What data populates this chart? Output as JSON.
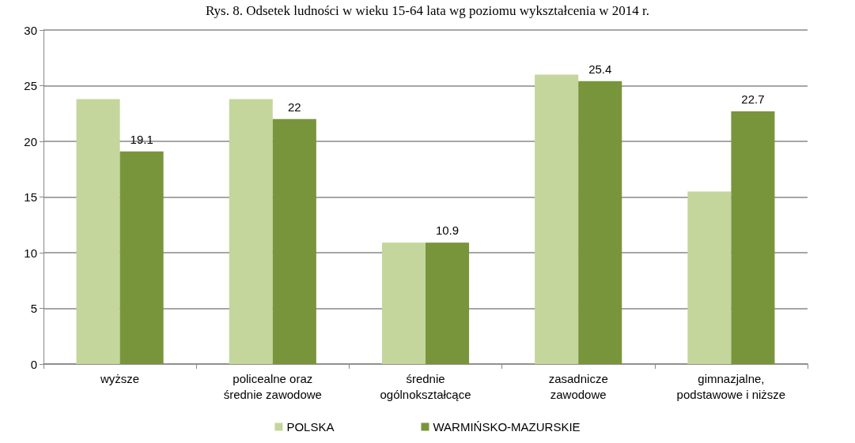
{
  "chart_data": {
    "type": "bar",
    "title": "Rys. 8. Odsetek ludności w wieku 15-64 lata wg poziomu wykształcenia w 2014 r.",
    "categories": [
      "wyższe",
      "policealne oraz\nśrednie zawodowe",
      "średnie\nogólnokształcące",
      "zasadnicze\nzawodowe",
      "gimnazjalne,\npodstawowe i niższe"
    ],
    "series": [
      {
        "name": "POLSKA",
        "color": "#c4d69c",
        "values": [
          23.8,
          23.8,
          10.9,
          26.0,
          15.5
        ]
      },
      {
        "name": "WARMIŃSKO-MAZURSKIE",
        "color": "#78953c",
        "values": [
          19.1,
          22,
          10.9,
          25.4,
          22.7
        ],
        "value_labels": [
          "19.1",
          "22",
          "10.9",
          "25.4",
          "22.7"
        ]
      }
    ],
    "ylim": [
      0,
      30
    ],
    "yticks": [
      0,
      5,
      10,
      15,
      20,
      25,
      30
    ],
    "grid": "y",
    "legend": "bottom"
  }
}
